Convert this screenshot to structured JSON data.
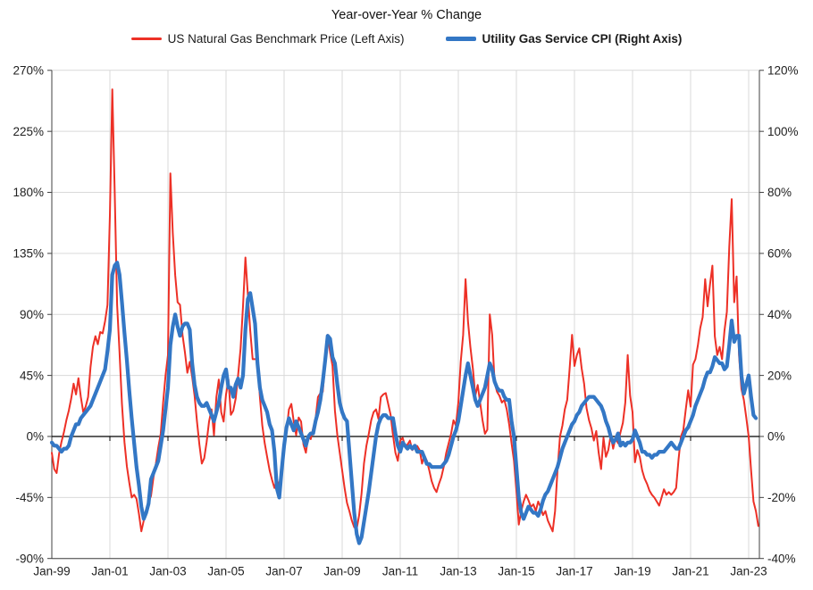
{
  "title": "Year-over-Year % Change",
  "chart_data": {
    "type": "line",
    "title": "Year-over-Year % Change",
    "frequency": "monthly",
    "x_start": "Jan-1999",
    "grid": true,
    "legend_position": "top",
    "x_tick_labels": [
      "Jan-99",
      "Jan-01",
      "Jan-03",
      "Jan-05",
      "Jan-07",
      "Jan-09",
      "Jan-11",
      "Jan-13",
      "Jan-15",
      "Jan-17",
      "Jan-19",
      "Jan-21",
      "Jan-23"
    ],
    "left_axis": {
      "ticks": [
        "270%",
        "225%",
        "180%",
        "135%",
        "90%",
        "45%",
        "0%",
        "-45%",
        "-90%"
      ],
      "min": -90,
      "max": 270,
      "step": 45
    },
    "right_axis": {
      "ticks": [
        "120%",
        "100%",
        "80%",
        "60%",
        "40%",
        "20%",
        "0%",
        "-20%",
        "-40%"
      ],
      "min": -40,
      "max": 120,
      "step": 20
    },
    "colors": {
      "gas_price": "#ed3026",
      "cpi": "#3377c5",
      "gridline": "#d9d9d9",
      "border": "#404040",
      "zero_line": "#000000"
    },
    "series": [
      {
        "name": "US Natural Gas Benchmark Price (Left Axis)",
        "axis": "left",
        "color": "#ed3026",
        "values": [
          -12,
          -24,
          -27,
          -13,
          -4,
          3,
          12,
          19,
          28,
          39,
          31,
          43,
          29,
          18,
          22,
          29,
          51,
          66,
          74,
          68,
          77,
          76,
          85,
          97,
          163,
          256,
          180,
          97,
          62,
          24,
          -4,
          -22,
          -34,
          -45,
          -43,
          -46,
          -57,
          -70,
          -62,
          -55,
          -48,
          -44,
          -30,
          -20,
          -8,
          2,
          25,
          45,
          60,
          194,
          150,
          119,
          99,
          97,
          75,
          62,
          47,
          55,
          44,
          30,
          11,
          -6,
          -20,
          -16,
          -4,
          11,
          20,
          1,
          29,
          42,
          18,
          11,
          31,
          42,
          16,
          19,
          28,
          45,
          65,
          96,
          132,
          105,
          78,
          57,
          57,
          57,
          29,
          8,
          -5,
          -15,
          -25,
          -32,
          -38,
          -31,
          -38,
          -22,
          -5,
          4,
          20,
          24,
          11,
          1,
          14,
          11,
          -6,
          -12,
          1,
          -2,
          6,
          13,
          29,
          32,
          33,
          55,
          75,
          62,
          52,
          19,
          1,
          -12,
          -25,
          -38,
          -49,
          -55,
          -62,
          -67,
          -68,
          -58,
          -42,
          -20,
          -7,
          2,
          12,
          18,
          20,
          13,
          29,
          31,
          32,
          24,
          16,
          1,
          -12,
          -18,
          -3,
          -1,
          -7,
          -6,
          -3,
          -10,
          -7,
          -7,
          -10,
          -20,
          -14,
          -18,
          -25,
          -33,
          -38,
          -41,
          -35,
          -30,
          -22,
          -12,
          -5,
          2,
          12,
          8,
          25,
          55,
          75,
          116,
          85,
          66,
          50,
          30,
          38,
          25,
          12,
          2,
          5,
          90,
          75,
          40,
          33,
          30,
          25,
          27,
          20,
          9,
          -5,
          -18,
          -40,
          -65,
          -55,
          -48,
          -43,
          -47,
          -52,
          -50,
          -55,
          -48,
          -52,
          -58,
          -55,
          -62,
          -66,
          -70,
          -55,
          -25,
          0,
          8,
          20,
          27,
          50,
          75,
          52,
          60,
          65,
          50,
          39,
          21,
          12,
          6,
          -3,
          4,
          -12,
          -24,
          -1,
          -15,
          -10,
          1,
          -9,
          -1,
          -5,
          3,
          10,
          25,
          60,
          30,
          18,
          -19,
          -10,
          -15,
          -25,
          -31,
          -35,
          -40,
          -43,
          -45,
          -48,
          -51,
          -45,
          -39,
          -43,
          -41,
          -43,
          -41,
          -38,
          -17,
          0,
          5,
          20,
          34,
          22,
          53,
          57,
          67,
          80,
          88,
          116,
          96,
          112,
          126,
          74,
          60,
          66,
          57,
          78,
          92,
          140,
          175,
          99,
          118,
          60,
          35,
          27,
          14,
          0,
          -25,
          -48,
          -55,
          -66
        ]
      },
      {
        "name": "Utility Gas Service CPI (Right Axis)",
        "axis": "right",
        "color": "#3377c5",
        "values": [
          -2,
          -3,
          -3,
          -4,
          -5,
          -4,
          -4,
          -3,
          0,
          2,
          4,
          4,
          6,
          7,
          8,
          9,
          10,
          12,
          14,
          16,
          18,
          20,
          22,
          28,
          35,
          53,
          56,
          57,
          53,
          44,
          34,
          25,
          15,
          6,
          -2,
          -10,
          -16,
          -23,
          -27,
          -25,
          -22,
          -14,
          -12,
          -10,
          -8,
          -3,
          2,
          9,
          16,
          30,
          36,
          40,
          36,
          33,
          36,
          37,
          37,
          35,
          24,
          17,
          13,
          11,
          10,
          10,
          11,
          9,
          7,
          5,
          8,
          11,
          16,
          20,
          22,
          16,
          16,
          13,
          17,
          19,
          16,
          20,
          35,
          45,
          47,
          42,
          37,
          24,
          16,
          12,
          10,
          8,
          4,
          2,
          -5,
          -17,
          -20,
          -11,
          -3,
          3,
          6,
          4,
          2,
          5,
          3,
          1,
          -1,
          -3,
          0,
          1,
          1,
          5,
          8,
          12,
          18,
          25,
          33,
          32,
          26,
          24,
          17,
          11,
          8,
          6,
          5,
          -5,
          -15,
          -25,
          -32,
          -35,
          -33,
          -28,
          -23,
          -18,
          -12,
          -6,
          0,
          4,
          6,
          7,
          7,
          6,
          6,
          6,
          1,
          -3,
          -5,
          -2,
          -3,
          -4,
          -3,
          -4,
          -3,
          -5,
          -5,
          -5,
          -7,
          -9,
          -9,
          -10,
          -10,
          -10,
          -10,
          -10,
          -9,
          -8,
          -6,
          -3,
          0,
          2,
          5,
          10,
          15,
          20,
          24,
          20,
          16,
          12,
          10,
          12,
          14,
          16,
          20,
          24,
          22,
          18,
          16,
          15,
          15,
          13,
          12,
          12,
          5,
          0,
          -10,
          -20,
          -25,
          -27,
          -25,
          -23,
          -24,
          -25,
          -25,
          -26,
          -24,
          -21,
          -19,
          -18,
          -16,
          -14,
          -12,
          -10,
          -7,
          -4,
          -2,
          0,
          2,
          4,
          5,
          7,
          8,
          10,
          11,
          12,
          13,
          13,
          13,
          12,
          11,
          10,
          8,
          5,
          3,
          0,
          -2,
          -1,
          1,
          -3,
          -2,
          -3,
          -2,
          -2,
          -1,
          2,
          0,
          -2,
          -5,
          -5,
          -6,
          -6,
          -7,
          -6,
          -6,
          -5,
          -5,
          -5,
          -4,
          -3,
          -2,
          -3,
          -4,
          -4,
          -2,
          0,
          2,
          3,
          5,
          7,
          10,
          12,
          14,
          16,
          19,
          21,
          21,
          23,
          26,
          25,
          24,
          24,
          22,
          23,
          30,
          38,
          31,
          33,
          33,
          20,
          14,
          17,
          20,
          13,
          7,
          6
        ]
      }
    ]
  }
}
